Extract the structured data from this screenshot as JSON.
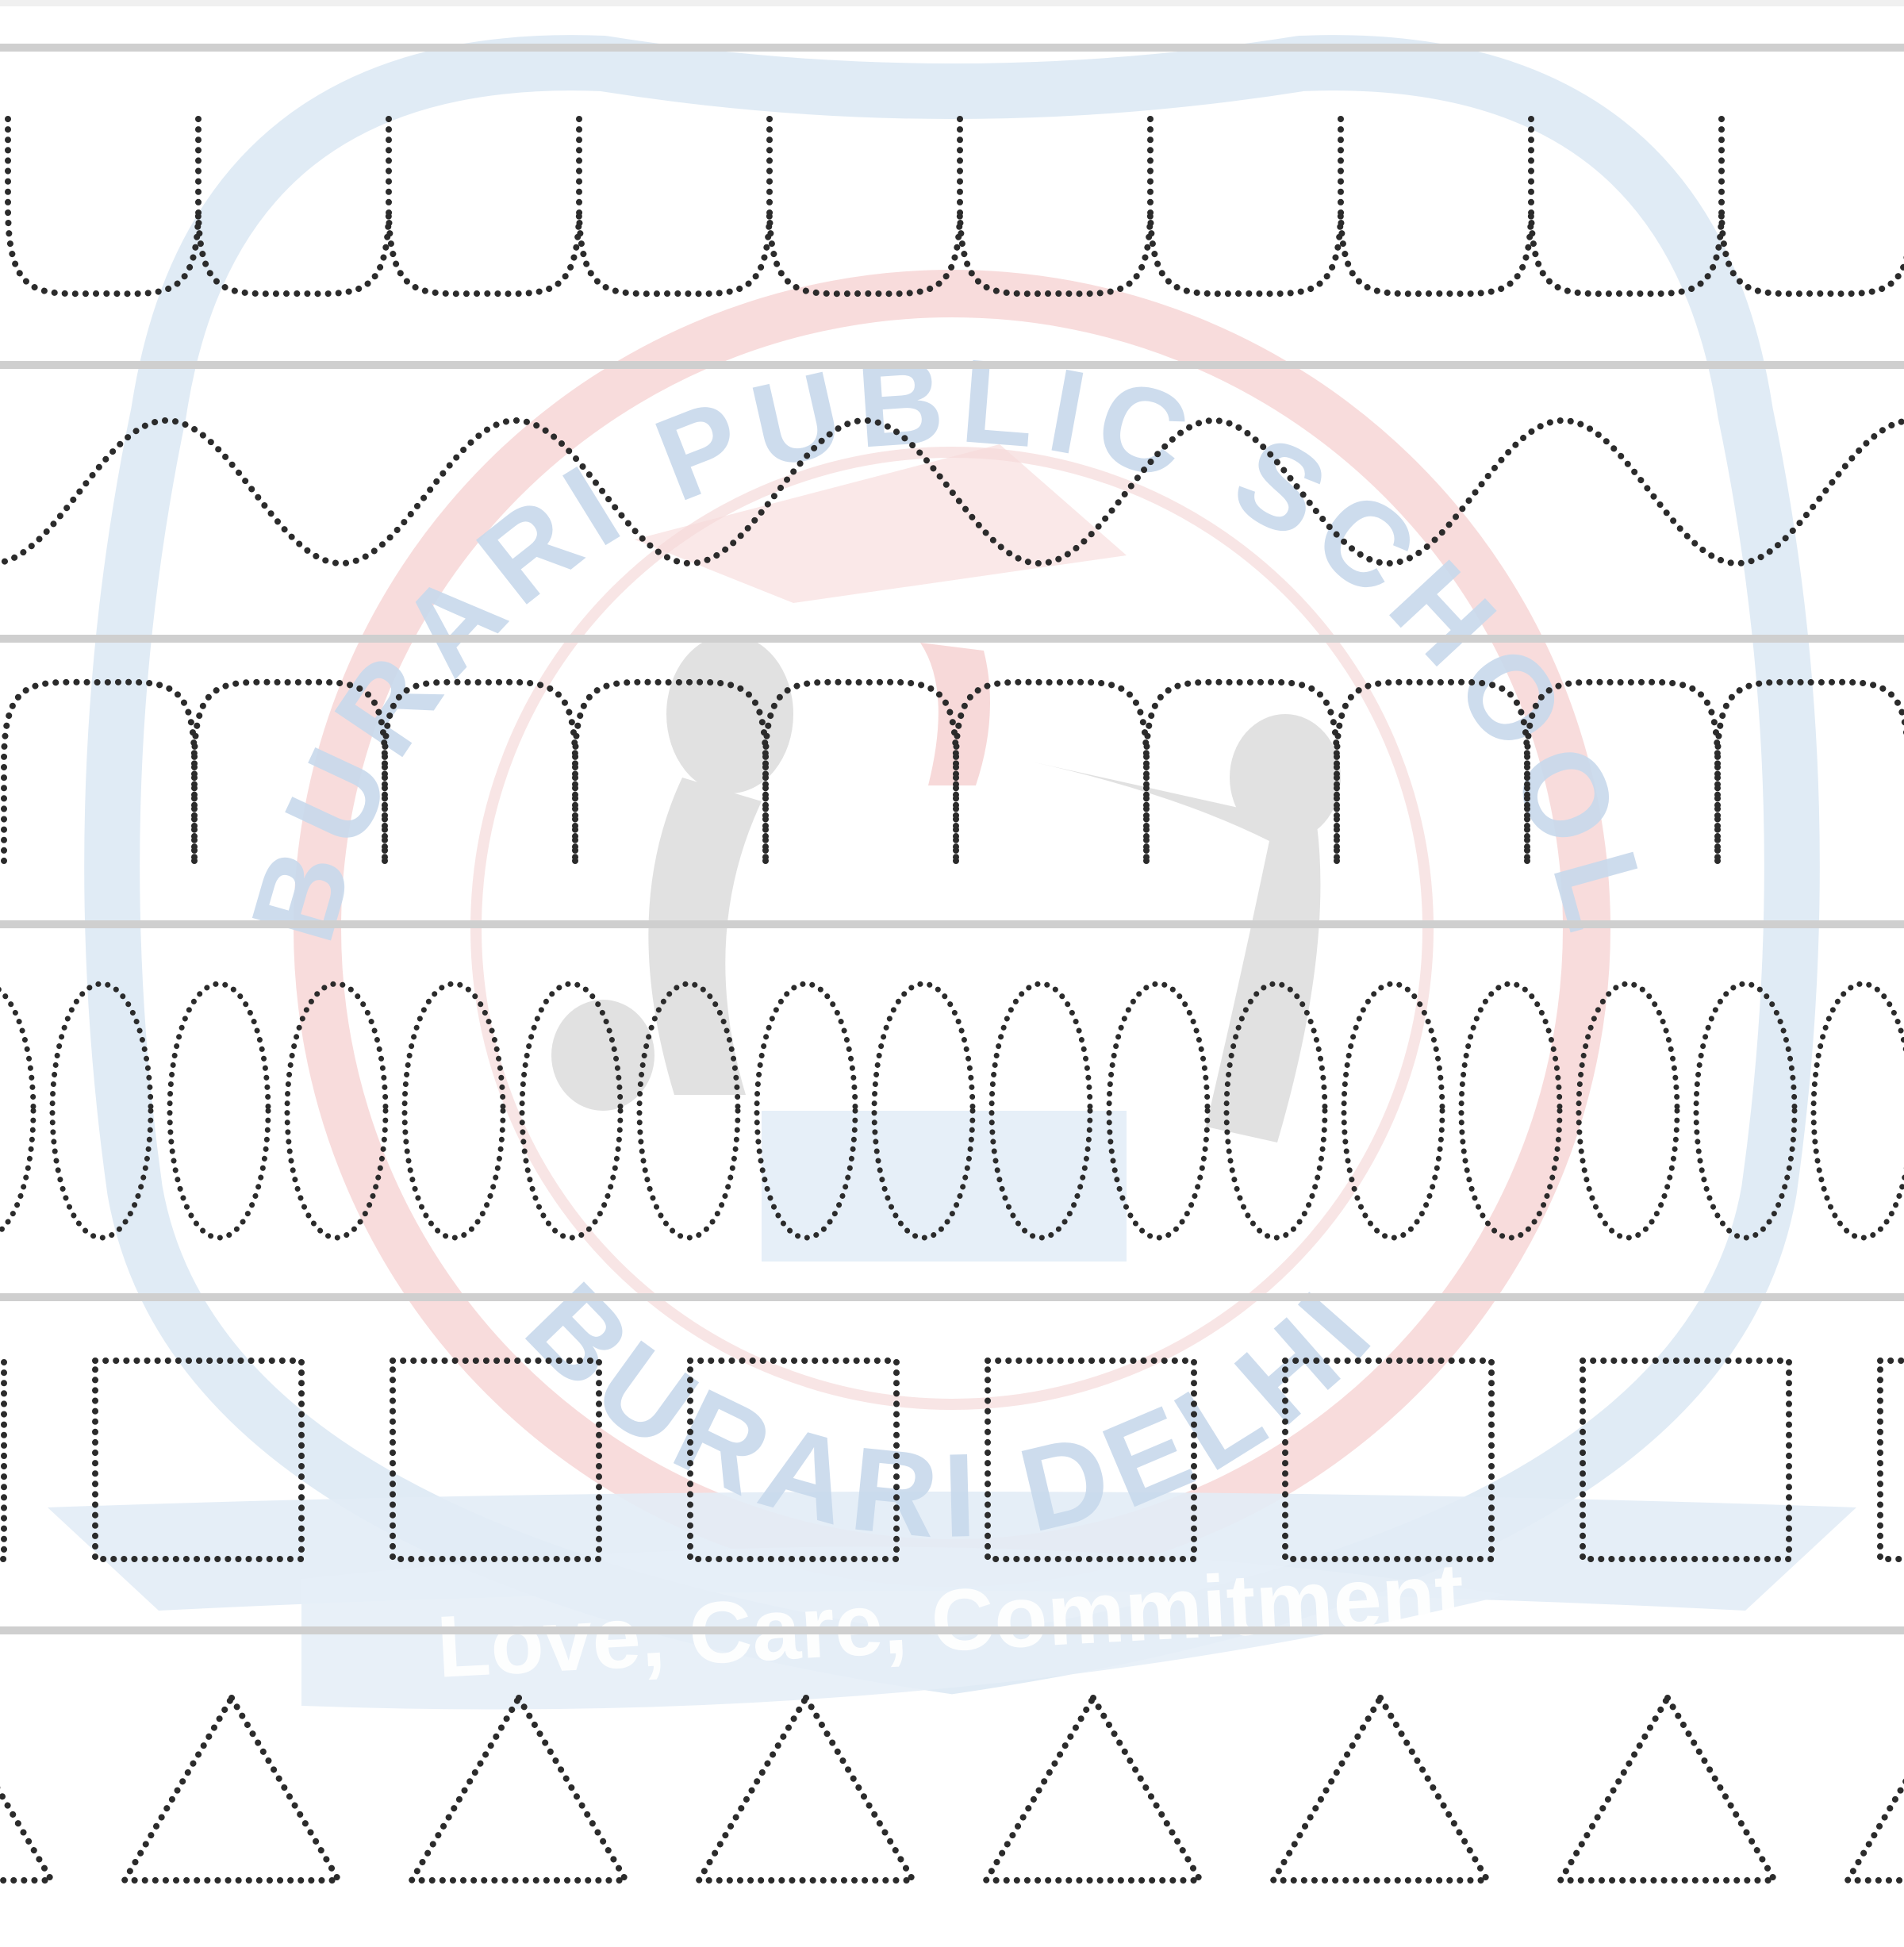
{
  "worksheet": {
    "type": "pattern tracing practice sheet",
    "rows": [
      {
        "pattern": "u-loops"
      },
      {
        "pattern": "wave"
      },
      {
        "pattern": "m-arches"
      },
      {
        "pattern": "overlapping-ovals"
      },
      {
        "pattern": "squares"
      },
      {
        "pattern": "triangles"
      }
    ]
  },
  "watermark": {
    "school_name_top": "BURARI PUBLIC SCHOOL",
    "school_name_bottom": "BURARI DELHI",
    "motto": "Love, Care, Commitment",
    "colors": {
      "outer": "#c9dcee",
      "inner_ring": "#f4c4c4",
      "figures": "#c8c8c8",
      "ribbon": "#d6e4f2"
    }
  },
  "colors": {
    "rule_line": "#cfcfcf",
    "dots": "#2b2b2b"
  }
}
